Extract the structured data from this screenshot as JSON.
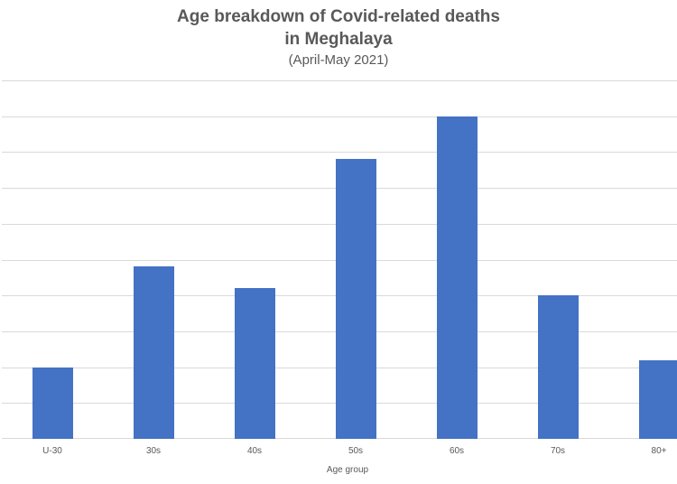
{
  "chart_data": {
    "type": "bar",
    "title": "Age breakdown of Covid-related deaths in Meghalaya",
    "title_lines": [
      "Age breakdown of Covid-related deaths",
      "in Meghalaya"
    ],
    "subtitle": "(April-May 2021)",
    "xlabel": "Age group",
    "ylabel": "",
    "categories": [
      "U-30",
      "30s",
      "40s",
      "50s",
      "60s",
      "70s",
      "80+"
    ],
    "values": [
      2.0,
      4.8,
      4.2,
      7.8,
      9.0,
      4.0,
      2.2
    ],
    "value_units_note": "relative gridline units (no y-axis tick labels shown)",
    "ylim": [
      0,
      10
    ],
    "grid": true,
    "legend": null,
    "bar_color": "#4472c4"
  }
}
